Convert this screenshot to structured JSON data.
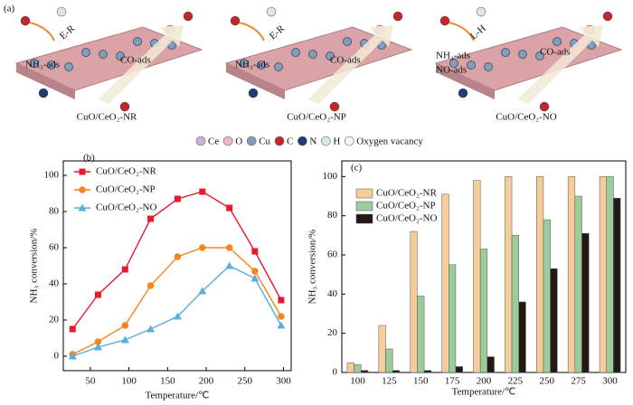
{
  "schematic": {
    "panel_label": "(a)",
    "panels": [
      {
        "caption": "CuO/CeO₂-NR",
        "labels": [
          "E-R",
          "NH₃-ads",
          "CO-ads"
        ]
      },
      {
        "caption": "CuO/CeO₂-NP",
        "labels": [
          "E-R",
          "NH₃-ads",
          "CO-ads"
        ]
      },
      {
        "caption": "CuO/CeO₂-NO",
        "labels": [
          "L-H",
          "NH₃-ads",
          "NO-ads",
          "CO-ads"
        ]
      }
    ],
    "legend": [
      {
        "label": "Ce",
        "color": "#c9b5d6"
      },
      {
        "label": "O",
        "color": "#f4b6bf"
      },
      {
        "label": "Cu",
        "color": "#7f9fc0"
      },
      {
        "label": "C",
        "color": "#c0262c"
      },
      {
        "label": "N",
        "color": "#1f3d73"
      },
      {
        "label": "H",
        "color": "#d9e7e7"
      },
      {
        "label": "Oxygen vacancy",
        "color": "#f4f4f4"
      }
    ]
  },
  "chart_data": [
    {
      "type": "line",
      "panel_label": "(b)",
      "x_label": "Temperature/℃",
      "y_label": "NH₃ conversion/%",
      "x": [
        27,
        60,
        95,
        128,
        163,
        195,
        230,
        263,
        297
      ],
      "series": [
        {
          "name": "CuO/CeO₂-NR",
          "color": "#e8192c",
          "marker": "square",
          "values": [
            15,
            34,
            48,
            76,
            87,
            91,
            82,
            58,
            31
          ]
        },
        {
          "name": "CuO/CeO₂-NP",
          "color": "#f5861f",
          "marker": "circle",
          "values": [
            1,
            8,
            17,
            39,
            55,
            60,
            60,
            47,
            22
          ]
        },
        {
          "name": "CuO/CeO₂-NO",
          "color": "#5aaee0",
          "marker": "triangle",
          "values": [
            0,
            5,
            9,
            15,
            22,
            36,
            50,
            43,
            17
          ]
        }
      ],
      "xlim": [
        15,
        310
      ],
      "xticks": [
        50,
        100,
        150,
        200,
        250,
        300
      ],
      "ylim": [
        -8,
        108
      ],
      "yticks": [
        0,
        20,
        40,
        60,
        80,
        100
      ],
      "legend": "upper left"
    },
    {
      "type": "bar",
      "panel_label": "(c)",
      "x_label": "Temperature/℃",
      "y_label": "NH₃ conversion/%",
      "categories": [
        "100",
        "125",
        "150",
        "175",
        "200",
        "225",
        "250",
        "275",
        "300"
      ],
      "series": [
        {
          "name": "CuO/CeO₂-NR",
          "color": "#f5cc9a",
          "values": [
            5,
            24,
            72,
            91,
            98,
            100,
            100,
            100,
            100
          ]
        },
        {
          "name": "CuO/CeO₂-NP",
          "color": "#9ccc9c",
          "values": [
            4,
            12,
            39,
            55,
            63,
            70,
            78,
            90,
            100
          ]
        },
        {
          "name": "CuO/CeO₂-NO",
          "color": "#231815",
          "values": [
            1,
            1,
            1,
            3,
            8,
            36,
            53,
            71,
            89
          ]
        }
      ],
      "ylim": [
        0,
        108
      ],
      "yticks": [
        0,
        20,
        40,
        60,
        80,
        100
      ],
      "legend": "upper left"
    }
  ]
}
